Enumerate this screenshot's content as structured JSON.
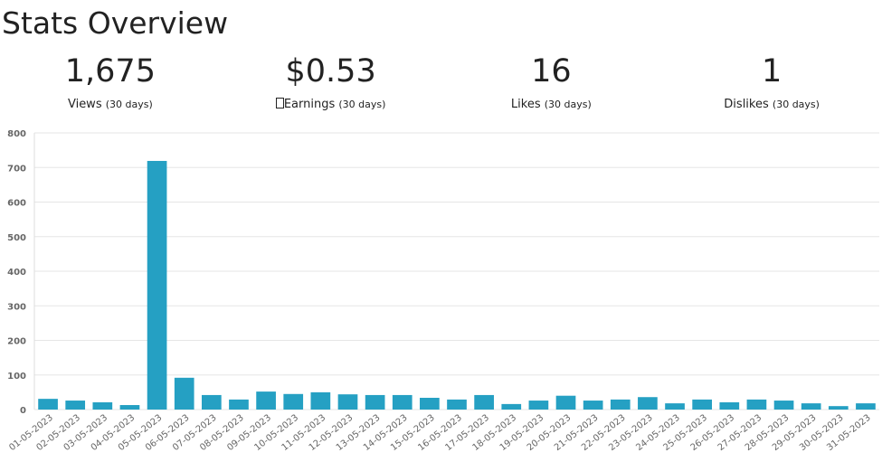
{
  "header": {
    "title": "Stats Overview"
  },
  "stats": [
    {
      "value": "1,675",
      "label": "Views",
      "period": "(30 days)"
    },
    {
      "value": "$0.53",
      "label": "Earnings",
      "period": "(30 days)"
    },
    {
      "value": "16",
      "label": "Likes",
      "period": "(30 days)"
    },
    {
      "value": "1",
      "label": "Dislikes",
      "period": "(30 days)"
    }
  ],
  "chart_data": {
    "type": "bar",
    "color": "#25a0c3",
    "grid": true,
    "categories": [
      "01-05-2023",
      "02-05-2023",
      "03-05-2023",
      "04-05-2023",
      "05-05-2023",
      "06-05-2023",
      "07-05-2023",
      "08-05-2023",
      "09-05-2023",
      "10-05-2023",
      "11-05-2023",
      "12-05-2023",
      "13-05-2023",
      "14-05-2023",
      "15-05-2023",
      "16-05-2023",
      "17-05-2023",
      "18-05-2023",
      "19-05-2023",
      "20-05-2023",
      "21-05-2023",
      "22-05-2023",
      "23-05-2023",
      "24-05-2023",
      "25-05-2023",
      "26-05-2023",
      "27-05-2023",
      "28-05-2023",
      "29-05-2023",
      "30-05-2023",
      "31-05-2023"
    ],
    "values": [
      31,
      26,
      21,
      13,
      719,
      92,
      42,
      29,
      52,
      45,
      50,
      44,
      42,
      42,
      34,
      29,
      42,
      16,
      26,
      40,
      26,
      29,
      36,
      18,
      29,
      21,
      29,
      26,
      18,
      10,
      18
    ],
    "ylim": [
      0,
      800
    ],
    "yticks": [
      0,
      100,
      200,
      300,
      400,
      500,
      600,
      700,
      800
    ]
  }
}
